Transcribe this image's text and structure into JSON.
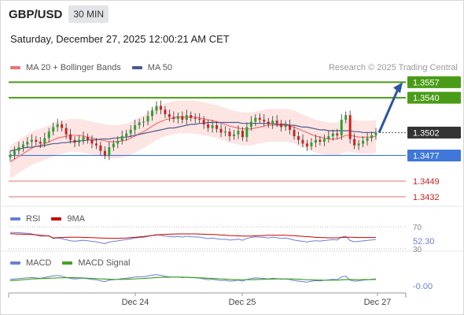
{
  "header": {
    "symbol": "GBP/USD",
    "timeframe": "30 MIN",
    "datetime": "Saturday, December 27, 2025 12:00:21 AM CET"
  },
  "legend": {
    "ma20_label": "MA 20 + Bollinger Bands",
    "ma50_label": "MA 50",
    "credit": "Research © 2025 Trading Central"
  },
  "colors": {
    "up_candle": "#2ea12e",
    "down_candle": "#cc2222",
    "ma20": "#f07070",
    "ma50": "#4a5a8c",
    "bollinger_fill": "#fde0de",
    "target_green": "#4a9c18",
    "pivot": "#333333",
    "support_blue": "#3f78d8",
    "support_red": "#e07070",
    "arrow": "#2d55a0",
    "rsi": "#6b7fd7",
    "rsi_ma": "#cc0000",
    "macd": "#6b7fd7",
    "macd_signal": "#44a020"
  },
  "rsi": {
    "label": "RSI",
    "ma_label": "9MA",
    "value_label": "52.30",
    "level_70": "70",
    "level_30": "30"
  },
  "macd": {
    "label": "MACD",
    "signal_label": "MACD Signal",
    "value_label": "-0.00"
  },
  "chart_data": {
    "type": "candlestick",
    "title": "GBP/USD",
    "x_ticks": [
      "Dec 24",
      "Dec 25",
      "Dec 27"
    ],
    "ylim": [
      1.3425,
      1.3565
    ],
    "levels": [
      {
        "value": "1.3557",
        "type": "resistance-target"
      },
      {
        "value": "1.3540",
        "type": "resistance-target"
      },
      {
        "value": "1.3502",
        "type": "pivot"
      },
      {
        "value": "1.3477",
        "type": "support"
      },
      {
        "value": "1.3449",
        "type": "support-minor"
      },
      {
        "value": "1.3432",
        "type": "support-minor"
      }
    ],
    "close_series": [
      1.3478,
      1.3482,
      1.3486,
      1.3489,
      1.3492,
      1.3494,
      1.3492,
      1.349,
      1.3496,
      1.3503,
      1.3508,
      1.3511,
      1.3507,
      1.35,
      1.3494,
      1.3491,
      1.3494,
      1.3497,
      1.3494,
      1.349,
      1.3488,
      1.3482,
      1.3477,
      1.3486,
      1.349,
      1.3493,
      1.3498,
      1.3501,
      1.3505,
      1.351,
      1.3513,
      1.3514,
      1.352,
      1.3526,
      1.3531,
      1.3527,
      1.3522,
      1.3519,
      1.3517,
      1.352,
      1.3516,
      1.3521,
      1.3518,
      1.3517,
      1.3516,
      1.3511,
      1.3507,
      1.351,
      1.3506,
      1.3502,
      1.3503,
      1.3498,
      1.35,
      1.3504,
      1.3497,
      1.3508,
      1.3514,
      1.3518,
      1.3516,
      1.3514,
      1.3511,
      1.3515,
      1.3512,
      1.3508,
      1.351,
      1.3505,
      1.3498,
      1.3494,
      1.349,
      1.3487,
      1.3491,
      1.3494,
      1.3492,
      1.3495,
      1.3498,
      1.3501,
      1.3499,
      1.3516,
      1.3521,
      1.3495,
      1.3488,
      1.349,
      1.3493,
      1.3496,
      1.3499,
      1.3502
    ],
    "ma20": [
      1.347,
      1.3473,
      1.3476,
      1.3479,
      1.3482,
      1.3485,
      1.3487,
      1.3488,
      1.349,
      1.3492,
      1.3494,
      1.3496,
      1.3497,
      1.3498,
      1.3499,
      1.3499,
      1.3499,
      1.3498,
      1.3497,
      1.3496,
      1.3495,
      1.3494,
      1.3493,
      1.3492,
      1.3492,
      1.3492,
      1.3493,
      1.3494,
      1.3496,
      1.3498,
      1.3501,
      1.3503,
      1.3506,
      1.3509,
      1.3512,
      1.3514,
      1.3516,
      1.3517,
      1.3518,
      1.3519,
      1.3519,
      1.3519,
      1.3519,
      1.3519,
      1.3518,
      1.3517,
      1.3516,
      1.3515,
      1.3514,
      1.3512,
      1.3511,
      1.3509,
      1.3508,
      1.3507,
      1.3506,
      1.3506,
      1.3506,
      1.3507,
      1.3508,
      1.3509,
      1.351,
      1.351,
      1.351,
      1.351,
      1.351,
      1.3509,
      1.3508,
      1.3506,
      1.3504,
      1.3502,
      1.35,
      1.3498,
      1.3497,
      1.3496,
      1.3495,
      1.3495,
      1.3495,
      1.3497,
      1.3499,
      1.3499,
      1.3498,
      1.3497,
      1.3497,
      1.3497,
      1.3497,
      1.3498
    ],
    "ma50": [
      1.3482,
      1.3483,
      1.3484,
      1.3485,
      1.3486,
      1.3486,
      1.3487,
      1.3487,
      1.3488,
      1.3489,
      1.349,
      1.349,
      1.3491,
      1.3491,
      1.3492,
      1.3492,
      1.3493,
      1.3493,
      1.3494,
      1.3494,
      1.3494,
      1.3495,
      1.3495,
      1.3495,
      1.3496,
      1.3496,
      1.3497,
      1.3497,
      1.3498,
      1.3499,
      1.35,
      1.3501,
      1.3502,
      1.3503,
      1.3504,
      1.3505,
      1.3506,
      1.3507,
      1.3507,
      1.3508,
      1.3509,
      1.351,
      1.3511,
      1.3511,
      1.3512,
      1.3512,
      1.3513,
      1.3513,
      1.3513,
      1.3513,
      1.3513,
      1.3513,
      1.3513,
      1.3513,
      1.3512,
      1.3512,
      1.3512,
      1.3512,
      1.3512,
      1.3512,
      1.3512,
      1.3512,
      1.3511,
      1.3511,
      1.3511,
      1.351,
      1.351,
      1.3509,
      1.3508,
      1.3508,
      1.3507,
      1.3506,
      1.3505,
      1.3505,
      1.3504,
      1.3504,
      1.3504,
      1.3504,
      1.3504,
      1.3504,
      1.3503,
      1.3503,
      1.3502,
      1.3502,
      1.3502,
      1.3502
    ],
    "band_width": 0.0018
  }
}
